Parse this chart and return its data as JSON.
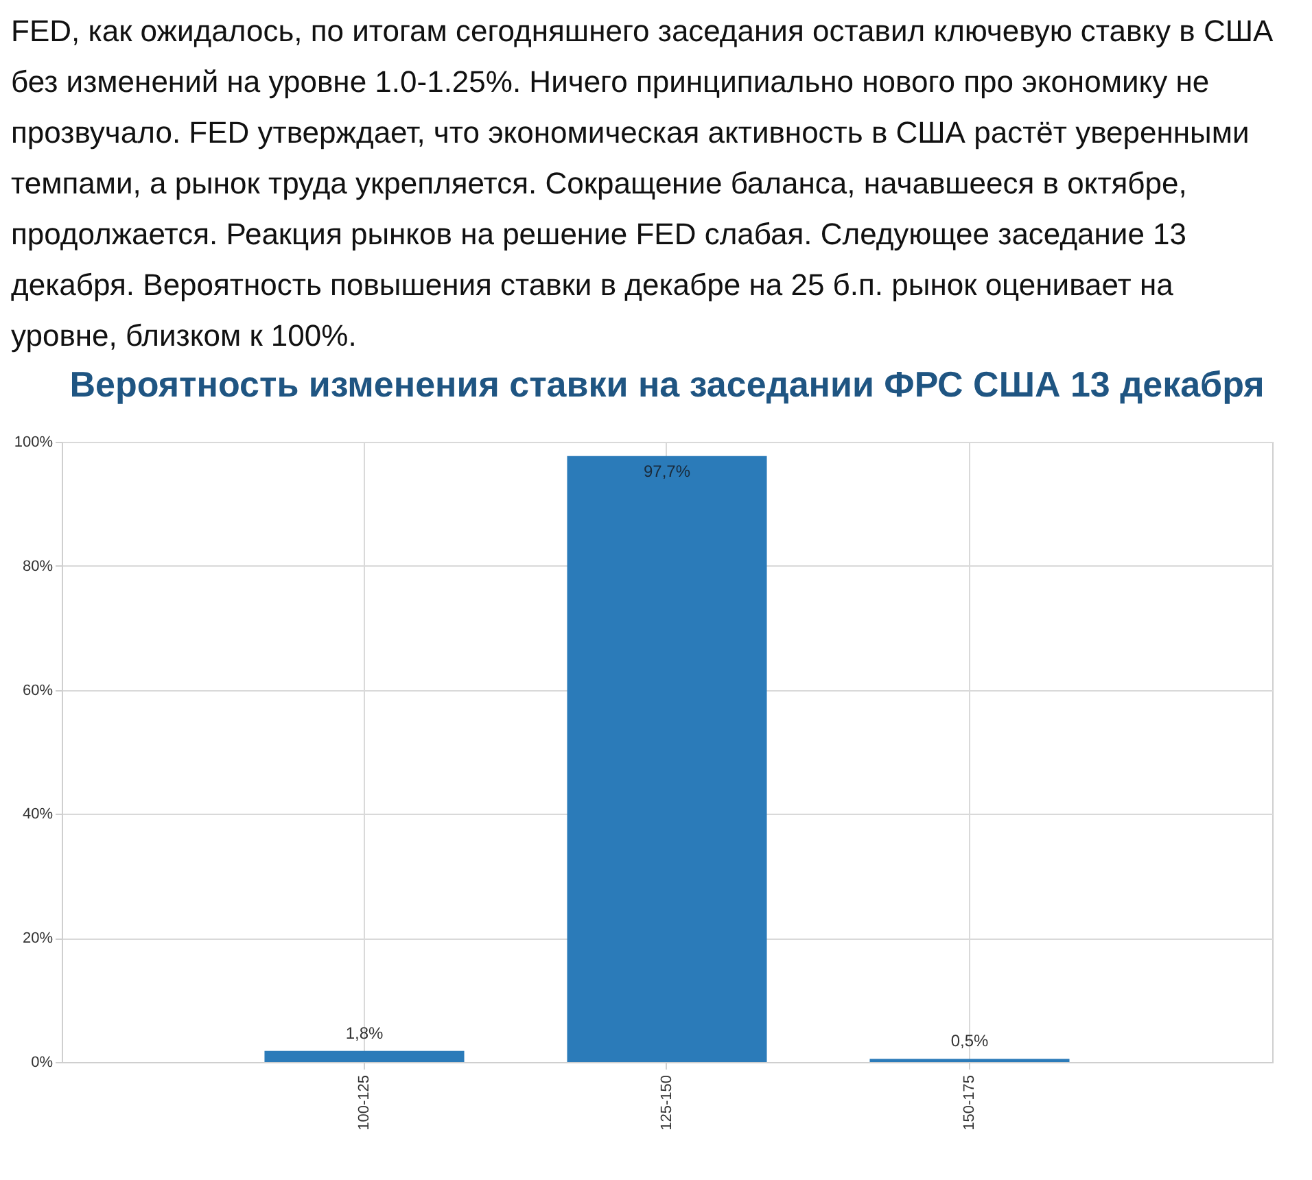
{
  "chart_data": {
    "type": "bar",
    "title": "Вероятность изменения ставки на заседании ФРС США 13 декабря",
    "annotations": [
      "FED, как ожидалось, по итогам сегодняшнего заседания оставил ключевую ставку в США без изменений на уровне 1.0-1.25%. Ничего принципиально нового про экономику не прозвучало. FED утверждает, что экономическая активность в США растёт уверенными темпами, а рынок труда укрепляется. Сокращение баланса, начавшееся в октябре, продолжается. Реакция рынков на решение FED слабая. Следующее заседание 13 декабря. Вероятность повышения ставки в декабре на 25 б.п. рынок оценивает на уровне, близком к 100%."
    ],
    "categories": [
      "100-125",
      "125-150",
      "150-175"
    ],
    "values": [
      1.8,
      97.7,
      0.5
    ],
    "value_labels": [
      "1,8%",
      "97,7%",
      "0,5%"
    ],
    "color": "#2b7bb9",
    "ylim": [
      0,
      100
    ],
    "yticks": [
      {
        "value": 0,
        "label": "0%"
      },
      {
        "value": 20,
        "label": "20%"
      },
      {
        "value": 40,
        "label": "40%"
      },
      {
        "value": 60,
        "label": "60%"
      },
      {
        "value": 80,
        "label": "80%"
      },
      {
        "value": 100,
        "label": "100%"
      }
    ],
    "grid": true
  }
}
